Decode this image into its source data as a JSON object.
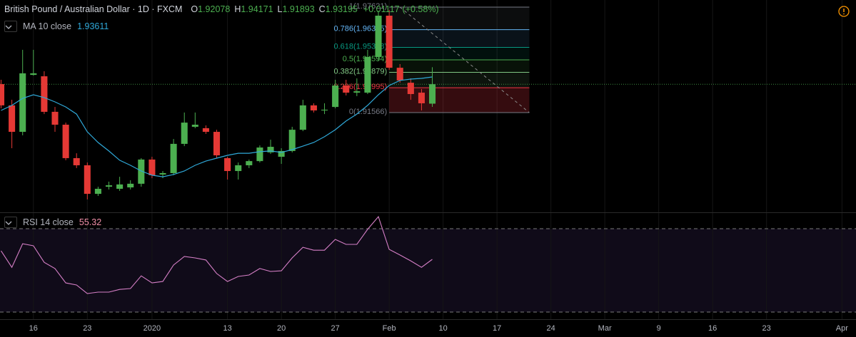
{
  "chart_data": [
    {
      "type": "candlestick",
      "title": "British Pound / Australian Dollar · 1D · FXCM",
      "ohlc_labels": [
        "O",
        "H",
        "L",
        "C"
      ],
      "change": {
        "value": 0.01117,
        "label": "+0.01117"
      },
      "change_pct": {
        "value": 0.58,
        "label": "(+0.58%)"
      },
      "categories": [
        null,
        null,
        null,
        null,
        null,
        null,
        null,
        null,
        null,
        null,
        null,
        null,
        null,
        null,
        null,
        null,
        null,
        null,
        null,
        null,
        null,
        null,
        null,
        null,
        null,
        null,
        null,
        null,
        null,
        null,
        null,
        null,
        null,
        null,
        null,
        null,
        null,
        null,
        null,
        null,
        null
      ],
      "open": [
        1.932,
        1.9198,
        1.9046,
        1.9373,
        1.9365,
        1.9161,
        1.9087,
        1.8895,
        1.8854,
        1.869,
        1.8731,
        1.8719,
        1.8727,
        1.8748,
        1.8887,
        1.8801,
        1.8809,
        1.8977,
        1.9075,
        1.9067,
        1.9046,
        1.8895,
        1.8821,
        1.8854,
        1.8878,
        1.8928,
        1.8903,
        1.8936,
        1.9058,
        1.9198,
        1.9169,
        1.9189,
        1.9312,
        1.9271,
        1.9271,
        1.9476,
        1.9713,
        1.9414,
        1.9328,
        1.9271,
        1.92078
      ],
      "high": [
        1.9345,
        1.923,
        1.9517,
        1.9517,
        1.9394,
        1.9189,
        1.9099,
        1.8923,
        1.887,
        1.8731,
        1.876,
        1.8788,
        1.8768,
        1.8895,
        1.8903,
        1.8821,
        1.9005,
        1.9157,
        1.9157,
        1.9083,
        1.9058,
        1.8903,
        1.887,
        1.8887,
        1.8968,
        1.9001,
        1.8952,
        1.9075,
        1.923,
        1.921,
        1.921,
        1.9345,
        1.9345,
        1.9353,
        1.9517,
        1.9742,
        1.9746,
        1.9435,
        1.9353,
        1.9292,
        1.94171
      ],
      "low": [
        1.9181,
        1.8952,
        1.9026,
        1.9369,
        1.9148,
        1.9046,
        1.8883,
        1.8838,
        1.8658,
        1.8678,
        1.8715,
        1.8707,
        1.8715,
        1.8731,
        1.878,
        1.878,
        1.8797,
        1.8964,
        1.9067,
        1.9034,
        1.8895,
        1.8772,
        1.8772,
        1.8838,
        1.887,
        1.8919,
        1.8862,
        1.8928,
        1.905,
        1.9157,
        1.9148,
        1.9181,
        1.9255,
        1.9251,
        1.9263,
        1.9455,
        1.9402,
        1.9328,
        1.923,
        1.9169,
        1.91893
      ],
      "close": [
        1.9198,
        1.9046,
        1.9382,
        1.9382,
        1.9161,
        1.9087,
        1.8895,
        1.8854,
        1.869,
        1.8719,
        1.8739,
        1.8744,
        1.8748,
        1.8887,
        1.8797,
        1.8809,
        1.8977,
        1.9099,
        1.9087,
        1.9046,
        1.8911,
        1.8821,
        1.8854,
        1.8878,
        1.8956,
        1.896,
        1.8936,
        1.9058,
        1.9198,
        1.9169,
        1.9173,
        1.9312,
        1.9271,
        1.9279,
        1.9476,
        1.9713,
        1.9414,
        1.9341,
        1.9263,
        1.921,
        1.93195
      ],
      "up_color": "#4caf50",
      "down_color": "#e53935",
      "last_price_line": true,
      "ma": {
        "name": "MA 10 close",
        "color": "#2fa8d8",
        "values": [
          1.9169,
          1.9198,
          1.9238,
          1.9259,
          1.9243,
          1.9218,
          1.9189,
          1.9148,
          1.9046,
          1.8985,
          1.8936,
          1.8883,
          1.8854,
          1.8821,
          1.8797,
          1.8788,
          1.8801,
          1.8821,
          1.8854,
          1.8878,
          1.8895,
          1.8911,
          1.8923,
          1.8923,
          1.8932,
          1.8936,
          1.8928,
          1.8944,
          1.8964,
          1.8985,
          1.9018,
          1.9058,
          1.9108,
          1.9148,
          1.9198,
          1.9259,
          1.9312,
          1.9341,
          1.9349,
          1.9353,
          1.93611
        ]
      },
      "fib": {
        "x": [
          36,
          49
        ],
        "levels": [
          {
            "price": 1.91566,
            "label": "0(1.91566)",
            "color": "#787b86"
          },
          {
            "price": 1.92995,
            "label": "0.236(1.92995)",
            "color": "#f23645"
          },
          {
            "price": 1.93879,
            "label": "0.382(1.93879)",
            "color": "#81c784"
          },
          {
            "price": 1.94594,
            "label": "0.5(1.94594)",
            "color": "#4caf50"
          },
          {
            "price": 1.95308,
            "label": "0.618(1.95308)",
            "color": "#089981"
          },
          {
            "price": 1.96325,
            "label": "0.786(1.96325)",
            "color": "#64b5f6"
          },
          {
            "price": 1.97621,
            "label": "1(1.97621)",
            "color": "#787b86"
          }
        ]
      },
      "xlim": [
        -0.1,
        79.3
      ],
      "ylim": [
        1.8588,
        1.9803
      ],
      "xticks": [
        {
          "value": 3,
          "label": "16"
        },
        {
          "value": 8,
          "label": "23"
        },
        {
          "value": 14,
          "label": "2020"
        },
        {
          "value": 21,
          "label": "13"
        },
        {
          "value": 26,
          "label": "20"
        },
        {
          "value": 31,
          "label": "27"
        },
        {
          "value": 36,
          "label": "Feb"
        },
        {
          "value": 41,
          "label": "10"
        },
        {
          "value": 46,
          "label": "17"
        },
        {
          "value": 51,
          "label": "24"
        },
        {
          "value": 56,
          "label": "Mar"
        },
        {
          "value": 61,
          "label": "9"
        },
        {
          "value": 66,
          "label": "16"
        },
        {
          "value": 71,
          "label": "23"
        },
        {
          "value": 78,
          "label": "Apr"
        }
      ],
      "grid": true
    },
    {
      "type": "line",
      "name": "RSI 14 close",
      "color": "#d57fc6",
      "value_color": "#f08fa8",
      "values": [
        59.4,
        51.5,
        62.8,
        61.8,
        53.9,
        50.9,
        44.0,
        43.0,
        38.9,
        39.6,
        39.6,
        40.9,
        41.3,
        47.4,
        44.0,
        44.7,
        52.6,
        56.7,
        56.0,
        55.0,
        48.5,
        44.7,
        47.1,
        47.8,
        50.9,
        49.5,
        49.8,
        56.0,
        61.1,
        59.7,
        59.7,
        64.9,
        62.5,
        62.5,
        69.7,
        75.8,
        60.1,
        57.4,
        54.6,
        51.5,
        55.32
      ],
      "ylim": [
        26.6,
        77.2
      ],
      "levels": [
        30,
        70
      ],
      "band_color": "#7e57c2"
    }
  ]
}
